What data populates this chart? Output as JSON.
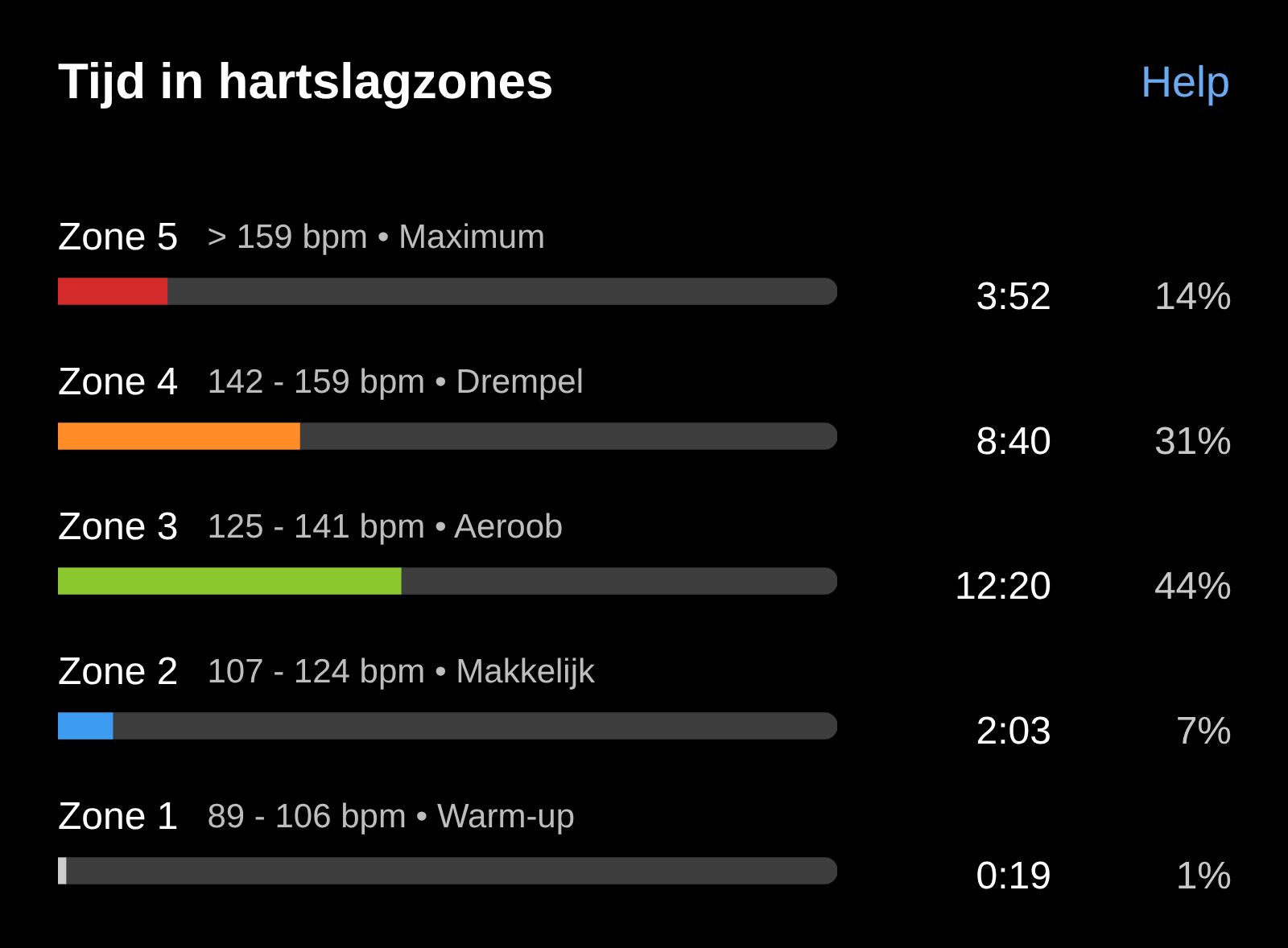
{
  "chart_data": {
    "type": "bar",
    "orientation": "horizontal",
    "stacked": true,
    "title": "Tijd in hartslagzones",
    "categories": [
      "Zone 5",
      "Zone 4",
      "Zone 3",
      "Zone 2",
      "Zone 1"
    ],
    "series": [
      {
        "colors": [
          "#d42a2a",
          "#ff8c27",
          "#8bc72e",
          "#3d9bf0",
          "#cccccc"
        ],
        "values": [
          14,
          31,
          44,
          7,
          1
        ],
        "value_labels": [
          "14%",
          "31%",
          "44%",
          "7%",
          "1%"
        ]
      },
      {
        "color": "#3d3d3d",
        "values": [
          86,
          69,
          56,
          93,
          99
        ]
      }
    ],
    "tick_labels": false,
    "annotations": [
      "Help",
      "> 159 bpm • Maximum",
      "142 - 159 bpm • Drempel",
      "125 - 141 bpm • Aeroob",
      "107 - 124 bpm • Makkelijk",
      "89 - 106 bpm • Warm-up",
      "3:52",
      "8:40",
      "12:20",
      "2:03",
      "0:19"
    ]
  }
}
